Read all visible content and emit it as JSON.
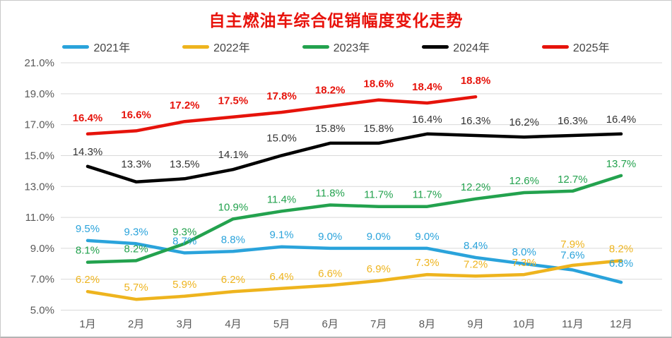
{
  "title": "自主燃油车综合促销幅度变化走势",
  "title_color": "#e8120b",
  "axis_text_color": "#595959",
  "grid_color": "#d9d9d9",
  "chart_data": {
    "type": "line",
    "title": "自主燃油车综合促销幅度变化走势",
    "categories": [
      "1月",
      "2月",
      "3月",
      "4月",
      "5月",
      "6月",
      "7月",
      "8月",
      "9月",
      "10月",
      "11月",
      "12月"
    ],
    "xlabel": "",
    "ylabel": "",
    "ylim": [
      5.0,
      21.0
    ],
    "ytick_step": 2.0,
    "ytick_labels": [
      "5.0%",
      "7.0%",
      "9.0%",
      "11.0%",
      "13.0%",
      "15.0%",
      "17.0%",
      "19.0%",
      "21.0%"
    ],
    "grid": true,
    "legend_position": "top",
    "data_labels": true,
    "label_format": "0.0%",
    "series": [
      {
        "name": "2021年",
        "color": "#2aa3db",
        "label_bold": false,
        "values": [
          9.5,
          9.3,
          8.7,
          8.8,
          9.1,
          9.0,
          9.0,
          9.0,
          8.4,
          8.0,
          7.6,
          6.8
        ]
      },
      {
        "name": "2022年",
        "color": "#eeb41e",
        "label_bold": false,
        "values": [
          6.2,
          5.7,
          5.9,
          6.2,
          6.4,
          6.6,
          6.9,
          7.3,
          7.2,
          7.3,
          7.9,
          8.2
        ]
      },
      {
        "name": "2023年",
        "color": "#23a24e",
        "label_bold": false,
        "values": [
          8.1,
          8.2,
          9.3,
          10.9,
          11.4,
          11.8,
          11.7,
          11.7,
          12.2,
          12.6,
          12.7,
          13.7
        ]
      },
      {
        "name": "2024年",
        "color": "#000000",
        "label_color": "#333333",
        "label_bold": false,
        "values": [
          14.3,
          13.3,
          13.5,
          14.1,
          15.0,
          15.8,
          15.8,
          16.4,
          16.3,
          16.2,
          16.3,
          16.4
        ]
      },
      {
        "name": "2025年",
        "color": "#e6130b",
        "label_bold": true,
        "values": [
          16.4,
          16.6,
          17.2,
          17.5,
          17.8,
          18.2,
          18.6,
          18.4,
          18.8
        ]
      }
    ]
  }
}
